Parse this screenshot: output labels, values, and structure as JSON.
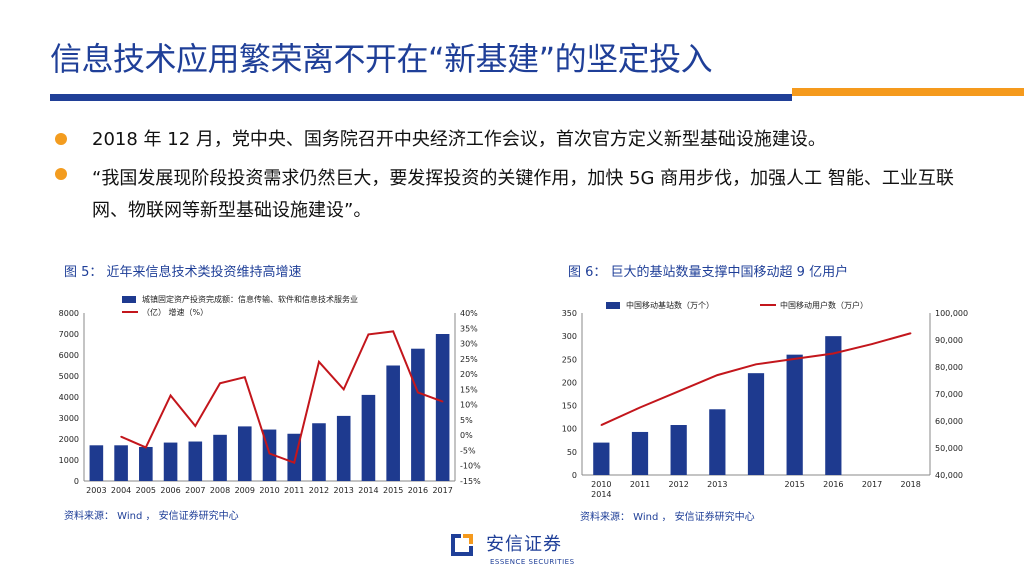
{
  "title": "信息技术应用繁荣离不开在“新基建”的坚定投入",
  "bullets": [
    "2018 年 12 月，党中央、国务院召开中央经济工作会议，首次官方定义新型基础设施建设。",
    "“我国发展现阶段投资需求仍然巨大，要发挥投资的关键作用，加快 5G 商用步伐，加强人工 智能、工业互联网、物联网等新型基础设施建设”。"
  ],
  "figure5": {
    "title": "图 5： 近年来信息技术类投资维持高增速",
    "source": "资料来源： Wind ， 安信证券研究中心"
  },
  "figure6": {
    "title": "图 6： 巨大的基站数量支撑中国移动超 9 亿用户",
    "source": "资料来源： Wind ， 安信证券研究中心"
  },
  "logo": {
    "cn": "安信证券",
    "en": "ESSENCE SECURITIES"
  },
  "colors": {
    "bar": "#1e3a8f",
    "line": "#c3161c",
    "title": "#1f3f98",
    "accent": "#f59a1d"
  },
  "chart_data": [
    {
      "type": "bar",
      "categories": [
        "2003",
        "2004",
        "2005",
        "2006",
        "2007",
        "2008",
        "2009",
        "2010",
        "2011",
        "2012",
        "2013",
        "2014",
        "2015",
        "2016",
        "2017"
      ],
      "ylim": [
        0,
        8000
      ],
      "y2lim": [
        -15,
        40
      ],
      "yticks": [
        "0",
        "1000",
        "2000",
        "3000",
        "4000",
        "5000",
        "6000",
        "7000",
        "8000"
      ],
      "y2ticks": [
        "-15%",
        "-10%",
        "-5%",
        "0%",
        "5%",
        "10%",
        "15%",
        "20%",
        "25%",
        "30%",
        "35%",
        "40%"
      ],
      "series": [
        {
          "name": "城镇固定资产投资完成额：信息传输、软件和信息技术服务业（亿）",
          "type": "bar",
          "values": [
            1700,
            1700,
            1620,
            1830,
            1880,
            2200,
            2600,
            2450,
            2250,
            2750,
            3100,
            4100,
            5500,
            6300,
            7000
          ]
        },
        {
          "name": "增速（%）",
          "type": "line",
          "axis": "right",
          "values": [
            null,
            -0.5,
            -4,
            13,
            3,
            17,
            19,
            -6,
            -9,
            24,
            15,
            33,
            34,
            14,
            11
          ]
        }
      ],
      "legend_position": "top-center"
    },
    {
      "type": "bar",
      "categories": [
        "2010",
        "2011",
        "2012",
        "2013",
        "2014",
        "2015",
        "2016",
        "2017",
        "2018"
      ],
      "category_labels": [
        "2010\n2014",
        "2011",
        "2012",
        "2013",
        "",
        "2015",
        "2016",
        "2017",
        "2018"
      ],
      "ylim": [
        0,
        350
      ],
      "y2lim": [
        40000,
        100000
      ],
      "yticks": [
        "0",
        "50",
        "100",
        "150",
        "200",
        "250",
        "300",
        "350"
      ],
      "y2ticks": [
        "40,000",
        "50,000",
        "60,000",
        "70,000",
        "80,000",
        "90,000",
        "100,000"
      ],
      "series": [
        {
          "name": "中国移动基站数（万个）",
          "type": "bar",
          "values": [
            70,
            93,
            108,
            142,
            220,
            260,
            300,
            null,
            null
          ]
        },
        {
          "name": "中国移动用户数（万户）",
          "type": "line",
          "axis": "right",
          "values": [
            58500,
            65000,
            71000,
            77000,
            81000,
            83000,
            85000,
            88500,
            92500
          ]
        }
      ],
      "legend_position": "top-center"
    }
  ]
}
